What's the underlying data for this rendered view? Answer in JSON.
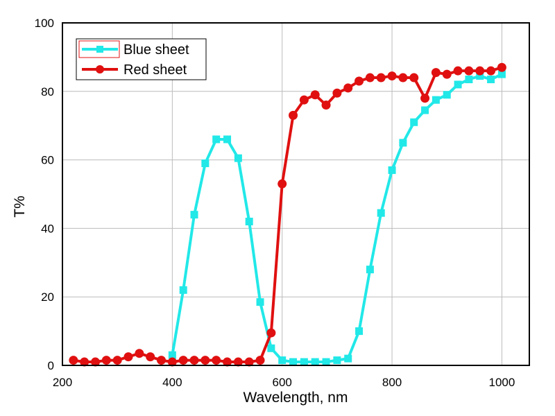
{
  "chart_data": {
    "type": "line",
    "title": "",
    "xlabel": "Wavelength, nm",
    "ylabel": "T%",
    "xlim": [
      200,
      1050
    ],
    "ylim": [
      0,
      100
    ],
    "xticks": [
      200,
      400,
      600,
      800,
      1000
    ],
    "yticks": [
      0,
      20,
      40,
      60,
      80,
      100
    ],
    "grid": true,
    "legend_position": "top-left",
    "series": [
      {
        "name": "Blue sheet",
        "color": "#22e8e8",
        "marker": "square",
        "x": [
          400,
          420,
          440,
          460,
          480,
          500,
          520,
          540,
          560,
          580,
          600,
          620,
          640,
          660,
          680,
          700,
          720,
          740,
          760,
          780,
          800,
          820,
          840,
          860,
          880,
          900,
          920,
          940,
          960,
          980,
          1000
        ],
        "y": [
          3,
          22,
          44,
          59,
          66,
          66,
          60.5,
          42,
          18.5,
          5,
          1.5,
          1,
          1,
          1,
          1,
          1.5,
          2,
          10,
          28,
          44.5,
          57,
          65,
          71,
          74.5,
          77.5,
          79,
          82,
          83.5,
          84.5,
          83.5,
          85
        ]
      },
      {
        "name": "Red sheet",
        "color": "#e01010",
        "marker": "circle",
        "x": [
          220,
          240,
          260,
          280,
          300,
          320,
          340,
          360,
          380,
          400,
          420,
          440,
          460,
          480,
          500,
          520,
          540,
          560,
          580,
          600,
          620,
          640,
          660,
          680,
          700,
          720,
          740,
          760,
          780,
          800,
          820,
          840,
          860,
          880,
          900,
          920,
          940,
          960,
          980,
          1000
        ],
        "y": [
          1.5,
          1,
          1,
          1.5,
          1.5,
          2.5,
          3.5,
          2.5,
          1.5,
          1,
          1.5,
          1.5,
          1.5,
          1.5,
          1,
          1,
          1,
          1.5,
          9.5,
          53,
          73,
          77.5,
          79,
          76,
          79.5,
          81,
          83,
          84,
          84,
          84.5,
          84,
          84,
          78,
          85.5,
          85,
          86,
          86,
          86,
          86,
          87
        ]
      }
    ]
  }
}
